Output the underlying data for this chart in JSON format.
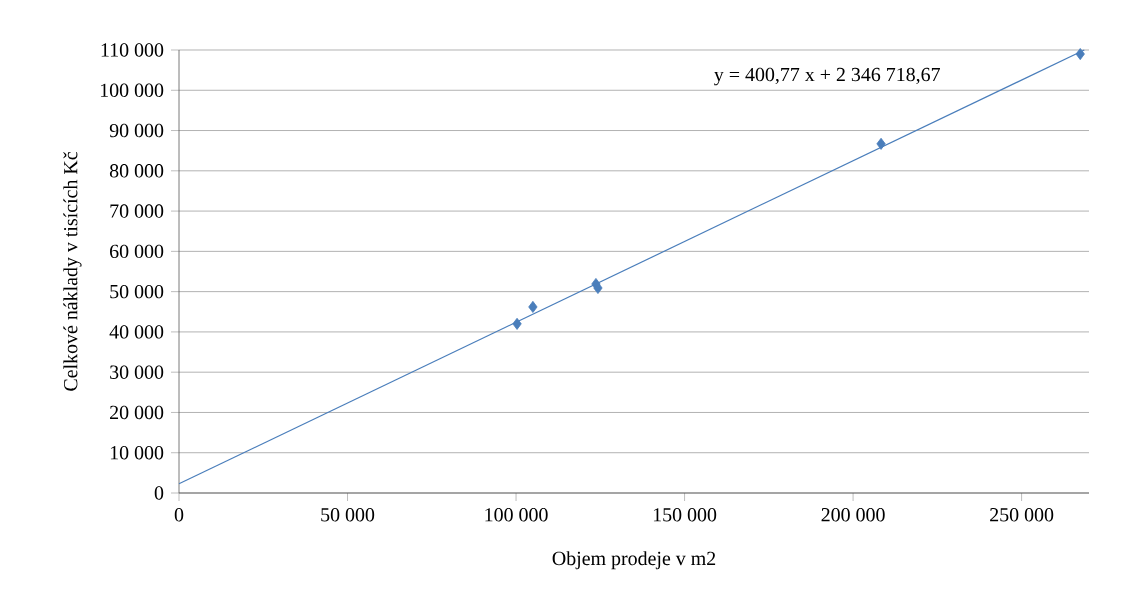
{
  "chart_data": {
    "type": "scatter",
    "xlabel": "Objem prodeje v m2",
    "ylabel": "Celkové náklady v tisících Kč",
    "xlim": [
      0,
      270000
    ],
    "ylim": [
      0,
      110000
    ],
    "xticks": [
      {
        "value": 0,
        "label": "0"
      },
      {
        "value": 50000,
        "label": "50 000"
      },
      {
        "value": 100000,
        "label": "100 000"
      },
      {
        "value": 150000,
        "label": "150 000"
      },
      {
        "value": 200000,
        "label": "200 000"
      },
      {
        "value": 250000,
        "label": "250 000"
      }
    ],
    "yticks": [
      {
        "value": 0,
        "label": "0"
      },
      {
        "value": 10000,
        "label": "10 000"
      },
      {
        "value": 20000,
        "label": "20 000"
      },
      {
        "value": 30000,
        "label": "30 000"
      },
      {
        "value": 40000,
        "label": "40 000"
      },
      {
        "value": 50000,
        "label": "50 000"
      },
      {
        "value": 60000,
        "label": "60 000"
      },
      {
        "value": 70000,
        "label": "70 000"
      },
      {
        "value": 80000,
        "label": "80 000"
      },
      {
        "value": 90000,
        "label": "90 000"
      },
      {
        "value": 100000,
        "label": "100 000"
      },
      {
        "value": 110000,
        "label": "110 000"
      }
    ],
    "grid": "y",
    "marker": "diamond",
    "series": [
      {
        "color": "#4a7ebb",
        "x": [
          100300,
          105000,
          123700,
          124300,
          208300,
          267400
        ],
        "values": [
          42000,
          46200,
          51900,
          50900,
          86700,
          109000
        ]
      },
      {
        "type": "line",
        "color": "#4a7ebb",
        "marker": "none",
        "line_style": "solid",
        "x": [
          0,
          268600
        ],
        "values": [
          2300,
          110000
        ]
      }
    ],
    "annotations": [
      "y = 400,77 x + 2 346 718,67"
    ]
  }
}
